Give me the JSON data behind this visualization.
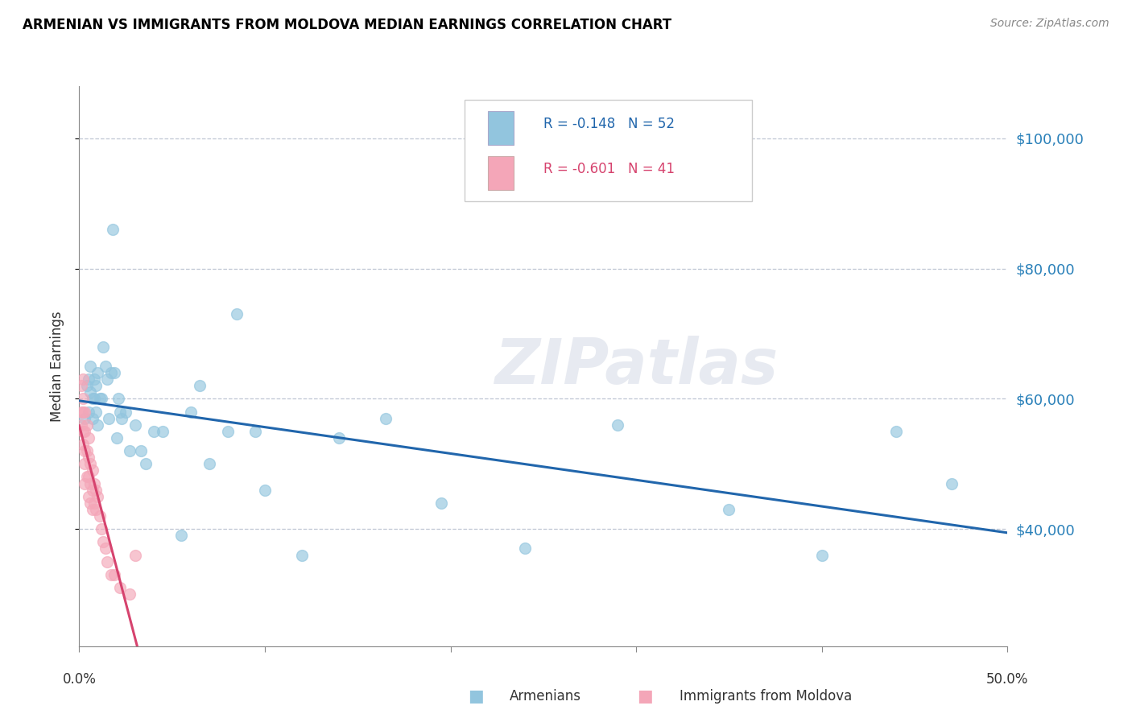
{
  "title": "ARMENIAN VS IMMIGRANTS FROM MOLDOVA MEDIAN EARNINGS CORRELATION CHART",
  "source": "Source: ZipAtlas.com",
  "ylabel": "Median Earnings",
  "watermark": "ZIPatlas",
  "legend_label1": "R = -0.148   N = 52",
  "legend_label2": "R = -0.601   N = 41",
  "legend_bottom1": "Armenians",
  "legend_bottom2": "Immigrants from Moldova",
  "ytick_values": [
    40000,
    60000,
    80000,
    100000
  ],
  "color_armenian": "#92c5de",
  "color_moldova": "#f4a6b8",
  "color_line_armenian": "#2166ac",
  "color_line_moldova": "#d6436e",
  "armenian_x": [
    0.003,
    0.004,
    0.005,
    0.005,
    0.006,
    0.006,
    0.007,
    0.007,
    0.008,
    0.008,
    0.009,
    0.009,
    0.01,
    0.01,
    0.011,
    0.012,
    0.013,
    0.014,
    0.015,
    0.016,
    0.017,
    0.018,
    0.019,
    0.02,
    0.021,
    0.022,
    0.023,
    0.025,
    0.027,
    0.03,
    0.033,
    0.036,
    0.04,
    0.045,
    0.055,
    0.06,
    0.065,
    0.07,
    0.08,
    0.085,
    0.095,
    0.1,
    0.12,
    0.14,
    0.165,
    0.195,
    0.24,
    0.29,
    0.35,
    0.4,
    0.44,
    0.47
  ],
  "armenian_y": [
    57000,
    62000,
    63000,
    58000,
    65000,
    61000,
    60000,
    57000,
    63000,
    60000,
    62000,
    58000,
    64000,
    56000,
    60000,
    60000,
    68000,
    65000,
    63000,
    57000,
    64000,
    86000,
    64000,
    54000,
    60000,
    58000,
    57000,
    58000,
    52000,
    56000,
    52000,
    50000,
    55000,
    55000,
    39000,
    58000,
    62000,
    50000,
    55000,
    73000,
    55000,
    46000,
    36000,
    54000,
    57000,
    44000,
    37000,
    56000,
    43000,
    36000,
    55000,
    47000
  ],
  "moldova_x": [
    0.001,
    0.001,
    0.001,
    0.002,
    0.002,
    0.002,
    0.002,
    0.002,
    0.003,
    0.003,
    0.003,
    0.003,
    0.003,
    0.004,
    0.004,
    0.004,
    0.005,
    0.005,
    0.005,
    0.005,
    0.006,
    0.006,
    0.006,
    0.007,
    0.007,
    0.007,
    0.008,
    0.008,
    0.009,
    0.009,
    0.01,
    0.011,
    0.012,
    0.013,
    0.014,
    0.015,
    0.017,
    0.019,
    0.022,
    0.027,
    0.03
  ],
  "moldova_y": [
    62000,
    58000,
    56000,
    63000,
    60000,
    58000,
    55000,
    53000,
    58000,
    55000,
    52000,
    50000,
    47000,
    56000,
    52000,
    48000,
    54000,
    51000,
    48000,
    45000,
    50000,
    47000,
    44000,
    49000,
    46000,
    43000,
    47000,
    44000,
    46000,
    43000,
    45000,
    42000,
    40000,
    38000,
    37000,
    35000,
    33000,
    33000,
    31000,
    30000,
    36000
  ],
  "xlim": [
    0.0,
    0.5
  ],
  "ylim": [
    22000,
    108000
  ],
  "xtick_positions": [
    0.0,
    0.1,
    0.2,
    0.3,
    0.4,
    0.5
  ],
  "xtick_labels": [
    "0.0%",
    "",
    "",
    "",
    "",
    "50.0%"
  ]
}
